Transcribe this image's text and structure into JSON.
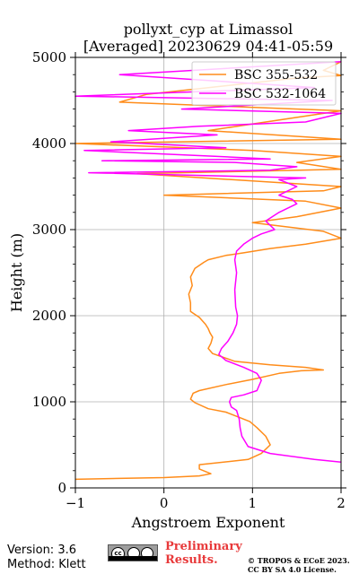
{
  "chart_data": {
    "type": "line",
    "title_line1": "pollyxt_cyp at Limassol",
    "title_line2": "[Averaged] 20230629 04:41-05:59",
    "xlabel": "Angstroem Exponent",
    "ylabel": "Height (m)",
    "xlim": [
      -1,
      2
    ],
    "ylim": [
      0,
      5000
    ],
    "xticks": [
      -1,
      0,
      1,
      2
    ],
    "xtick_labels": [
      "−1",
      "0",
      "1",
      "2"
    ],
    "yticks": [
      0,
      1000,
      2000,
      3000,
      4000,
      5000
    ],
    "ytick_labels": [
      "0",
      "1000",
      "2000",
      "3000",
      "4000",
      "5000"
    ],
    "grid": true,
    "legend_position": "upper-right",
    "series": [
      {
        "name": "BSC 355-532",
        "color": "#ff8c1a",
        "x": [
          -1.0,
          -0.5,
          0.0,
          0.4,
          0.53,
          0.4,
          0.4,
          0.95,
          1.1,
          1.2,
          1.15,
          1.05,
          0.97,
          0.85,
          0.7,
          0.5,
          0.35,
          0.3,
          0.33,
          0.4,
          0.7,
          1.0,
          1.3,
          1.55,
          1.8,
          1.6,
          1.2,
          0.8,
          0.55,
          0.5,
          0.53,
          0.55,
          0.52,
          0.5,
          0.47,
          0.4,
          0.3,
          0.3,
          0.28,
          0.32,
          0.3,
          0.35,
          0.45,
          0.5,
          0.7,
          0.9,
          1.2,
          1.6,
          2.0,
          1.8,
          1.0,
          1.5,
          2.0,
          1.6,
          0.0,
          1.8,
          2.0,
          -0.3,
          2.0,
          1.5,
          2.0,
          1.0,
          -1.0,
          2.0,
          0.5,
          2.0,
          -0.5,
          -0.2,
          1.5,
          2.0,
          1.8,
          2.0
        ],
        "y": [
          100,
          110,
          120,
          140,
          165,
          220,
          270,
          330,
          400,
          500,
          600,
          700,
          770,
          820,
          880,
          920,
          990,
          1030,
          1100,
          1130,
          1200,
          1260,
          1330,
          1360,
          1370,
          1400,
          1430,
          1470,
          1560,
          1620,
          1680,
          1750,
          1800,
          1850,
          1900,
          1980,
          2050,
          2150,
          2250,
          2350,
          2450,
          2550,
          2620,
          2650,
          2700,
          2730,
          2780,
          2830,
          2900,
          2980,
          3080,
          3150,
          3250,
          3330,
          3400,
          3450,
          3500,
          3650,
          3700,
          3780,
          3850,
          3920,
          4000,
          4050,
          4150,
          4380,
          4480,
          4570,
          4760,
          4790,
          4850,
          4950
        ]
      },
      {
        "name": "BSC 532-1064",
        "color": "#ff00ff",
        "x": [
          2.0,
          1.7,
          1.2,
          0.95,
          0.88,
          0.86,
          0.85,
          0.82,
          0.76,
          0.74,
          0.76,
          0.9,
          1.05,
          1.1,
          1.05,
          0.9,
          0.7,
          0.62,
          0.65,
          0.72,
          0.78,
          0.82,
          0.83,
          0.81,
          0.8,
          0.82,
          0.8,
          0.82,
          0.9,
          1.0,
          1.1,
          1.25,
          1.15,
          1.3,
          1.5,
          1.45,
          1.3,
          1.5,
          1.3,
          1.6,
          -0.85,
          1.2,
          1.5,
          0.8,
          -0.7,
          1.2,
          0.6,
          -0.9,
          0.7,
          -0.6,
          0.6,
          -0.4,
          0.4,
          1.6,
          2.0,
          0.2,
          1.9,
          -1.0,
          1.7,
          -0.5,
          2.0
        ],
        "y": [
          300,
          330,
          400,
          480,
          600,
          700,
          800,
          900,
          940,
          1000,
          1050,
          1080,
          1130,
          1250,
          1330,
          1400,
          1480,
          1550,
          1620,
          1700,
          1800,
          1900,
          2000,
          2100,
          2300,
          2500,
          2650,
          2750,
          2830,
          2900,
          2950,
          3000,
          3100,
          3200,
          3300,
          3350,
          3400,
          3500,
          3580,
          3600,
          3660,
          3690,
          3730,
          3780,
          3800,
          3820,
          3850,
          3920,
          3950,
          4020,
          4100,
          4150,
          4200,
          4250,
          4350,
          4400,
          4500,
          4550,
          4650,
          4800,
          4950
        ]
      }
    ]
  },
  "footer": {
    "version": "Version: 3.6",
    "method": "Method: Klett",
    "preliminary_line1": "Preliminary",
    "preliminary_line2": "Results.",
    "copyright_line1": "© TROPOS & ECoE 2023.",
    "copyright_line2": "CC BY SA 4.0 License.",
    "cc_logo_icon": "creative-commons-by-sa-icon"
  }
}
